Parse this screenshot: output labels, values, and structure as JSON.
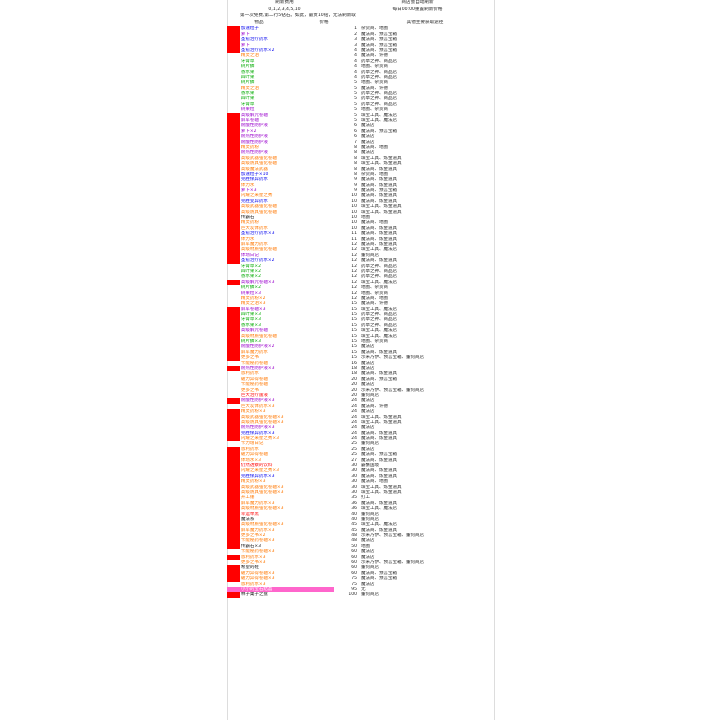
{
  "header": {
    "top_left": "刷新费用",
    "top_right": "商店会自动刷新",
    "refresh_costs": "0,1,2,3,4,5,10",
    "refresh_time": "每日00:00重置刷新价格",
    "free_note": "第一次免费,第二行5钻石。如此，最贵10钻，无法刷新取",
    "col_item": "物品",
    "col_price": "价格",
    "col_source": "其他主要获取途径"
  },
  "colors": {
    "red": "#ff0000",
    "pink": "#ff66cc",
    "blue": "#0000ee",
    "purple": "#9900cc",
    "green": "#00aa00",
    "orange": "#ff7700",
    "black": "#111111"
  },
  "rows": [
    {
      "name": "加速粒子",
      "price": "1",
      "source": "杂货商、地图",
      "color": "blue",
      "mark": "red"
    },
    {
      "name": "萝卜",
      "price": "2",
      "source": "魔法商、预言宝箱",
      "color": "purple",
      "mark": "red"
    },
    {
      "name": "圣愈治疗药水",
      "price": "3",
      "source": "魔法商、预言宝箱",
      "color": "blue",
      "mark": "red"
    },
    {
      "name": "萝卜",
      "price": "3",
      "source": "魔法商、预言宝箱",
      "color": "purple",
      "mark": "red"
    },
    {
      "name": "圣愈治疗药水×2",
      "price": "4",
      "source": "魔法商、预言宝箱",
      "color": "blue",
      "mark": "red"
    },
    {
      "name": "精灵之泪",
      "price": "4",
      "source": "魔法商、许德",
      "color": "orange",
      "mark": ""
    },
    {
      "name": "牙膏草",
      "price": "4",
      "source": "药草之神、商品店",
      "color": "green",
      "mark": ""
    },
    {
      "name": "树片鳞",
      "price": "4",
      "source": "地图、杂货商",
      "color": "green",
      "mark": ""
    },
    {
      "name": "香水果",
      "price": "4",
      "source": "药草之神、商品店",
      "color": "green",
      "mark": ""
    },
    {
      "name": "四叶果",
      "price": "4",
      "source": "药草之神、商品店",
      "color": "green",
      "mark": ""
    },
    {
      "name": "树片鳞",
      "price": "5",
      "source": "地图、杂货商",
      "color": "green",
      "mark": ""
    },
    {
      "name": "精灵之泪",
      "price": "5",
      "source": "魔法商、许德",
      "color": "orange",
      "mark": ""
    },
    {
      "name": "香水果",
      "price": "5",
      "source": "药草之神、商品店",
      "color": "green",
      "mark": ""
    },
    {
      "name": "四叶果",
      "price": "5",
      "source": "药草之神、商品店",
      "color": "green",
      "mark": ""
    },
    {
      "name": "牙膏草",
      "price": "5",
      "source": "药草之神、商品店",
      "color": "green",
      "mark": ""
    },
    {
      "name": "树果粒",
      "price": "5",
      "source": "地图、杂货商",
      "color": "purple",
      "mark": ""
    },
    {
      "name": "高级解咒卷轴",
      "price": "5",
      "source": "珠宝工具、魔法店",
      "color": "purple",
      "mark": "red"
    },
    {
      "name": "屏军卷轴",
      "price": "5",
      "source": "珠宝工具、魔法店",
      "color": "purple",
      "mark": "red"
    },
    {
      "name": "耐酸性防护液",
      "price": "6",
      "source": "魔法店",
      "color": "purple",
      "mark": "red"
    },
    {
      "name": "萝卜×2",
      "price": "6",
      "source": "魔法商、预言宝箱",
      "color": "purple",
      "mark": "red"
    },
    {
      "name": "耐热性防护液",
      "price": "6",
      "source": "魔法店",
      "color": "purple",
      "mark": "red"
    },
    {
      "name": "耐酸性防护液",
      "price": "7",
      "source": "魔法店",
      "color": "purple",
      "mark": "red"
    },
    {
      "name": "精灵药粉",
      "price": "8",
      "source": "魔法商、地图",
      "color": "orange",
      "mark": "red"
    },
    {
      "name": "耐热性防护液",
      "price": "8",
      "source": "魔法店",
      "color": "purple",
      "mark": "red"
    },
    {
      "name": "高级武器强化卷轴",
      "price": "8",
      "source": "珠宝工具、炼金道具",
      "color": "orange",
      "mark": "red"
    },
    {
      "name": "高级防具强化卷轴",
      "price": "8",
      "source": "珠宝工具、炼金道具",
      "color": "orange",
      "mark": "red"
    },
    {
      "name": "高级魔法武器",
      "price": "8",
      "source": "魔法商、炼金道具",
      "color": "orange",
      "mark": "red"
    },
    {
      "name": "加速粒子×10",
      "price": "8",
      "source": "杂货商、地图",
      "color": "blue",
      "mark": "red"
    },
    {
      "name": "完胜保异药水",
      "price": "9",
      "source": "魔法商、炼金道具",
      "color": "blue",
      "mark": "red"
    },
    {
      "name": "体力水",
      "price": "9",
      "source": "魔法商、炼金道具",
      "color": "orange",
      "mark": "red"
    },
    {
      "name": "萝卜×3",
      "price": "9",
      "source": "魔法商、预言宝箱",
      "color": "purple",
      "mark": "red"
    },
    {
      "name": "闪耀之采星之秀",
      "price": "10",
      "source": "魔法商、炼金道具",
      "color": "orange",
      "mark": "red"
    },
    {
      "name": "完胜变异药水",
      "price": "10",
      "source": "魔法商、炼金道具",
      "color": "blue",
      "mark": "red"
    },
    {
      "name": "高级武器强化卷轴",
      "price": "10",
      "source": "珠宝工具、炼金道具",
      "color": "orange",
      "mark": "red"
    },
    {
      "name": "高级防具强化卷轴",
      "price": "10",
      "source": "珠宝工具、炼金道具",
      "color": "orange",
      "mark": "red"
    },
    {
      "name": "传霸石",
      "price": "10",
      "source": "地图",
      "color": "black",
      "mark": "red"
    },
    {
      "name": "精灵药粉",
      "price": "10",
      "source": "魔法商、地图",
      "color": "orange",
      "mark": "red"
    },
    {
      "name": "巨大炭体药水",
      "price": "10",
      "source": "魔法商、炼金道具",
      "color": "orange",
      "mark": "red"
    },
    {
      "name": "圣愈治疗药水×3",
      "price": "11",
      "source": "魔法商、炼金道具",
      "color": "blue",
      "mark": "red"
    },
    {
      "name": "体力水",
      "price": "11",
      "source": "魔法商、炼金道具",
      "color": "orange",
      "mark": "red"
    },
    {
      "name": "屏军魔力药水",
      "price": "12",
      "source": "魔法商、炼金道具",
      "color": "orange",
      "mark": "red"
    },
    {
      "name": "高级材质强化卷轴",
      "price": "12",
      "source": "珠宝工具、魔法店",
      "color": "orange",
      "mark": "red"
    },
    {
      "name": "体场日记",
      "price": "12",
      "source": "董何商店",
      "color": "purple",
      "mark": "red"
    },
    {
      "name": "圣愈治疗药水×2",
      "price": "12",
      "source": "魔法商、炼金道具",
      "color": "blue",
      "mark": "red"
    },
    {
      "name": "牙膏草×2",
      "price": "12",
      "source": "药草之神、商品店",
      "color": "green",
      "mark": ""
    },
    {
      "name": "四叶果×2",
      "price": "12",
      "source": "药草之神、商品店",
      "color": "green",
      "mark": ""
    },
    {
      "name": "香水果×2",
      "price": "12",
      "source": "药草之神、商品店",
      "color": "green",
      "mark": ""
    },
    {
      "name": "高级解咒卷轴×3",
      "price": "12",
      "source": "珠宝工具、魔法店",
      "color": "purple",
      "mark": "red"
    },
    {
      "name": "树片鳞×2",
      "price": "12",
      "source": "地图、杂货商",
      "color": "green",
      "mark": ""
    },
    {
      "name": "树果粒×3",
      "price": "12",
      "source": "地图、杂货商",
      "color": "purple",
      "mark": ""
    },
    {
      "name": "精灵药粉×2",
      "price": "12",
      "source": "魔法商、地图",
      "color": "orange",
      "mark": ""
    },
    {
      "name": "精灵之泪×3",
      "price": "15",
      "source": "魔法商、许德",
      "color": "orange",
      "mark": ""
    },
    {
      "name": "屏军卷轴×3",
      "price": "15",
      "source": "珠宝工具、魔法店",
      "color": "purple",
      "mark": "red"
    },
    {
      "name": "四叶果×3",
      "price": "15",
      "source": "药草之神、商品店",
      "color": "green",
      "mark": "red"
    },
    {
      "name": "牙膏草×3",
      "price": "15",
      "source": "药草之神、商品店",
      "color": "green",
      "mark": "red"
    },
    {
      "name": "香水果×3",
      "price": "15",
      "source": "药草之神、商品店",
      "color": "green",
      "mark": "red"
    },
    {
      "name": "高级解咒卷轴",
      "price": "15",
      "source": "珠宝工具、魔法店",
      "color": "purple",
      "mark": "red"
    },
    {
      "name": "高级材质强化卷轴",
      "price": "15",
      "source": "珠宝工具、魔法店",
      "color": "orange",
      "mark": "red"
    },
    {
      "name": "树片鳞×3",
      "price": "15",
      "source": "地图、杂货商",
      "color": "green",
      "mark": "red"
    },
    {
      "name": "耐酸性防护液×2",
      "price": "15",
      "source": "魔法店",
      "color": "purple",
      "mark": "red"
    },
    {
      "name": "屏军魔力药水",
      "price": "15",
      "source": "魔法商、炼金道具",
      "color": "orange",
      "mark": "red"
    },
    {
      "name": "更多之书",
      "price": "15",
      "source": "示米乃伊、预言宝箱、董何商店",
      "color": "orange",
      "mark": "red"
    },
    {
      "name": "卡能秘药卷轴",
      "price": "16",
      "source": "魔法店",
      "color": "orange",
      "mark": ""
    },
    {
      "name": "耐热性防护液×3",
      "price": "18",
      "source": "魔法店",
      "color": "purple",
      "mark": "red"
    },
    {
      "name": "恩利药水",
      "price": "18",
      "source": "魔法商、炼金道具",
      "color": "orange",
      "mark": ""
    },
    {
      "name": "破力异得卷轴",
      "price": "20",
      "source": "魔法商、预言宝箱",
      "color": "orange",
      "mark": ""
    },
    {
      "name": "卡能秘药卷轴",
      "price": "20",
      "source": "魔法店",
      "color": "orange",
      "mark": ""
    },
    {
      "name": "更多之书",
      "price": "20",
      "source": "示米乃伊、预言宝箱、董何商店",
      "color": "orange",
      "mark": ""
    },
    {
      "name": "巨大治疗菌液",
      "price": "20",
      "source": "董何商店",
      "color": "red",
      "mark": ""
    },
    {
      "name": "耐酸性防护液×3",
      "price": "24",
      "source": "魔法店",
      "color": "purple",
      "mark": "red"
    },
    {
      "name": "巨大炭体药水×3",
      "price": "24",
      "source": "魔法商、许德",
      "color": "orange",
      "mark": ""
    },
    {
      "name": "精灵药粉×3",
      "price": "24",
      "source": "魔法店",
      "color": "orange",
      "mark": "red"
    },
    {
      "name": "高级武器强化卷轴×3",
      "price": "24",
      "source": "珠宝工具、炼金道具",
      "color": "orange",
      "mark": "red"
    },
    {
      "name": "高级防具强化卷轴×3",
      "price": "24",
      "source": "珠宝工具、炼金道具",
      "color": "orange",
      "mark": "red"
    },
    {
      "name": "耐热性防护液×3",
      "price": "24",
      "source": "魔法店",
      "color": "purple",
      "mark": "red"
    },
    {
      "name": "完胜保异药水×3",
      "price": "24",
      "source": "魔法商、炼金道具",
      "color": "blue",
      "mark": "red"
    },
    {
      "name": "闪耀之采星之秀×3",
      "price": "24",
      "source": "魔法商、炼金道具",
      "color": "orange",
      "mark": "red"
    },
    {
      "name": "卡力增日记",
      "price": "25",
      "source": "董何商店",
      "color": "orange",
      "mark": ""
    },
    {
      "name": "恩利药水",
      "price": "25",
      "source": "魔法店",
      "color": "orange",
      "mark": "red"
    },
    {
      "name": "破力异得卷轴",
      "price": "25",
      "source": "魔法商、预言宝箱",
      "color": "orange",
      "mark": "red"
    },
    {
      "name": "体场水×3",
      "price": "27",
      "source": "魔法商、炼金道具",
      "color": "orange",
      "mark": "red"
    },
    {
      "name": "仍然透察的饮料",
      "price": "30",
      "source": "霸蟹国境",
      "color": "red",
      "mark": "red"
    },
    {
      "name": "闪耀之采星之秀×3",
      "price": "30",
      "source": "魔法商、炼金道具",
      "color": "orange",
      "mark": "red"
    },
    {
      "name": "完胜保异药水×3",
      "price": "30",
      "source": "魔法商、炼金道具",
      "color": "blue",
      "mark": "red"
    },
    {
      "name": "精灵药粉×3",
      "price": "30",
      "source": "魔法商、地图",
      "color": "orange",
      "mark": "red"
    },
    {
      "name": "高级武器强化卷轴×3",
      "price": "30",
      "source": "珠宝工具、炼金道具",
      "color": "orange",
      "mark": "red"
    },
    {
      "name": "高级防具强化卷轴×3",
      "price": "30",
      "source": "珠宝工具、炼金道具",
      "color": "orange",
      "mark": "red"
    },
    {
      "name": "开工锤",
      "price": "35",
      "source": "打工",
      "color": "orange",
      "mark": "red"
    },
    {
      "name": "屏军魔力药水×3",
      "price": "36",
      "source": "魔法商、炼金道具",
      "color": "orange",
      "mark": "red"
    },
    {
      "name": "高级材质强化卷轴×3",
      "price": "36",
      "source": "珠宝工具、魔法店",
      "color": "orange",
      "mark": "red"
    },
    {
      "name": "幸运举黑",
      "price": "40",
      "source": "董何商店",
      "color": "red",
      "mark": "red"
    },
    {
      "name": "魔法系",
      "price": "40",
      "source": "董何商店",
      "color": "black",
      "mark": "red"
    },
    {
      "name": "高级材质强化卷轴×3",
      "price": "45",
      "source": "珠宝工具、魔法店",
      "color": "orange",
      "mark": "red"
    },
    {
      "name": "屏军魔力药水×3",
      "price": "45",
      "source": "魔法商、炼金道具",
      "color": "orange",
      "mark": "red"
    },
    {
      "name": "更多之书×2",
      "price": "48",
      "source": "示米乃伊、预言宝箱、董何商店",
      "color": "orange",
      "mark": "red"
    },
    {
      "name": "卡能秘药卷轴×3",
      "price": "48",
      "source": "魔法店",
      "color": "orange",
      "mark": "red"
    },
    {
      "name": "传霸石×3",
      "price": "50",
      "source": "地图",
      "color": "black",
      "mark": "red"
    },
    {
      "name": "卡能秘药卷轴×3",
      "price": "60",
      "source": "魔法店",
      "color": "orange",
      "mark": ""
    },
    {
      "name": "恩利药水×3",
      "price": "60",
      "source": "魔法店",
      "color": "orange",
      "mark": "red"
    },
    {
      "name": "更多之书×3",
      "price": "60",
      "source": "示米乃伊、预言宝箱、董何商店",
      "color": "orange",
      "mark": ""
    },
    {
      "name": "希望的鞋",
      "price": "60",
      "source": "董何商店",
      "color": "black",
      "mark": "red"
    },
    {
      "name": "破力异得卷轴×3",
      "price": "60",
      "source": "魔法商、预言宝箱",
      "color": "orange",
      "mark": "red"
    },
    {
      "name": "破力异得卷轴×3",
      "price": "75",
      "source": "魔法商、预言宝箱",
      "color": "orange",
      "mark": "red"
    },
    {
      "name": "恩利药水×3",
      "price": "75",
      "source": "魔法店",
      "color": "orange",
      "mark": ""
    },
    {
      "name": "小小的宝石结晶",
      "price": "95",
      "source": "无",
      "color": "black",
      "mark": "pink"
    },
    {
      "name": "林子菓子之盘",
      "price": "100",
      "source": "董何商店",
      "color": "black",
      "mark": "red"
    }
  ]
}
